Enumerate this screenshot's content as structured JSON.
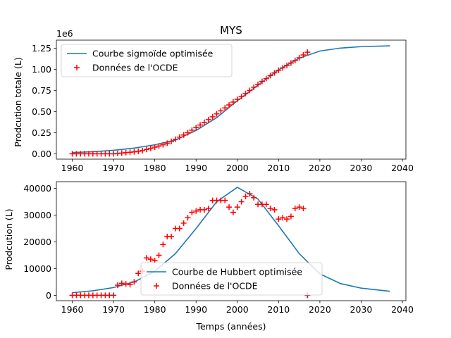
{
  "chart_data": [
    {
      "type": "line+scatter",
      "title": "MYS",
      "ylabel": "Prodcution totale (L)",
      "xlabel": "",
      "offset_text": "1e6",
      "xlim": [
        1956.15,
        2040.85
      ],
      "ylim": [
        -0.064,
        1.345
      ],
      "xticks": [
        1960,
        1970,
        1980,
        1990,
        2000,
        2010,
        2020,
        2030,
        2040
      ],
      "yticks": [
        0.0,
        0.25,
        0.5,
        0.75,
        1.0,
        1.25
      ],
      "ytick_labels": [
        "0.00",
        "0.25",
        "0.50",
        "0.75",
        "1.00",
        "1.25"
      ],
      "legend_position": "upper left",
      "series": [
        {
          "name": "Courbe sigmoïde optimisée",
          "kind": "line",
          "color": "#1f77b4",
          "x": [
            1960,
            1965,
            1970,
            1975,
            1980,
            1985,
            1990,
            1995,
            2000,
            2005,
            2010,
            2015,
            2020,
            2025,
            2030,
            2037
          ],
          "y": [
            0.014,
            0.024,
            0.041,
            0.067,
            0.106,
            0.162,
            0.275,
            0.427,
            0.628,
            0.813,
            0.993,
            1.131,
            1.216,
            1.251,
            1.268,
            1.278
          ]
        },
        {
          "name": "Données de l'OCDE",
          "kind": "scatter",
          "marker": "+",
          "color": "#ff0000",
          "x": [
            1960,
            1961,
            1962,
            1963,
            1964,
            1965,
            1966,
            1967,
            1968,
            1969,
            1970,
            1971,
            1972,
            1973,
            1974,
            1975,
            1976,
            1977,
            1978,
            1979,
            1980,
            1981,
            1982,
            1983,
            1984,
            1985,
            1986,
            1987,
            1988,
            1989,
            1990,
            1991,
            1992,
            1993,
            1994,
            1995,
            1996,
            1997,
            1998,
            1999,
            2000,
            2001,
            2002,
            2003,
            2004,
            2005,
            2006,
            2007,
            2008,
            2009,
            2010,
            2011,
            2012,
            2013,
            2014,
            2015,
            2016,
            2017
          ],
          "y": [
            0.0,
            0.0,
            0.0,
            0.0,
            0.0,
            0.0,
            0.0,
            0.0,
            0.0,
            0.0,
            0.0,
            0.004,
            0.008,
            0.013,
            0.017,
            0.022,
            0.029,
            0.037,
            0.051,
            0.064,
            0.078,
            0.091,
            0.106,
            0.125,
            0.147,
            0.172,
            0.197,
            0.222,
            0.249,
            0.279,
            0.309,
            0.34,
            0.372,
            0.404,
            0.437,
            0.472,
            0.508,
            0.543,
            0.578,
            0.611,
            0.644,
            0.677,
            0.712,
            0.749,
            0.787,
            0.822,
            0.856,
            0.89,
            0.925,
            0.957,
            0.989,
            1.017,
            1.046,
            1.074,
            1.104,
            1.137,
            1.17,
            1.202
          ]
        }
      ]
    },
    {
      "type": "line+scatter",
      "title": "",
      "ylabel": "Prodcution (L)",
      "xlabel": "Temps (années)",
      "xlim": [
        1956.15,
        2040.85
      ],
      "ylim": [
        -2000,
        42500
      ],
      "xticks": [
        1960,
        1970,
        1980,
        1990,
        2000,
        2010,
        2020,
        2030,
        2040
      ],
      "yticks": [
        0,
        10000,
        20000,
        30000,
        40000
      ],
      "legend_position": "lower center",
      "series": [
        {
          "name": "Courbe de Hubbert optimisée",
          "kind": "line",
          "color": "#1f77b4",
          "x": [
            1960,
            1965,
            1970,
            1975,
            1980,
            1985,
            1990,
            1995,
            2000,
            2005,
            2010,
            2015,
            2020,
            2025,
            2030,
            2037
          ],
          "y": [
            1000,
            1700,
            2900,
            5000,
            9000,
            15600,
            25000,
            35000,
            40400,
            36000,
            26000,
            15600,
            8000,
            4400,
            2700,
            1500
          ]
        },
        {
          "name": "Données de l'OCDE",
          "kind": "scatter",
          "marker": "+",
          "color": "#ff0000",
          "x": [
            1960,
            1961,
            1962,
            1963,
            1964,
            1965,
            1966,
            1967,
            1968,
            1969,
            1970,
            1971,
            1972,
            1973,
            1974,
            1975,
            1976,
            1977,
            1978,
            1979,
            1980,
            1981,
            1982,
            1983,
            1984,
            1985,
            1986,
            1987,
            1988,
            1989,
            1990,
            1991,
            1992,
            1993,
            1994,
            1995,
            1996,
            1997,
            1998,
            1999,
            2000,
            2001,
            2002,
            2003,
            2004,
            2005,
            2006,
            2007,
            2008,
            2009,
            2010,
            2011,
            2012,
            2013,
            2014,
            2015,
            2016,
            2017
          ],
          "y": [
            0,
            0,
            0,
            0,
            0,
            0,
            0,
            0,
            0,
            0,
            0,
            3800,
            4500,
            4300,
            4000,
            5000,
            8200,
            9000,
            14000,
            13500,
            13000,
            15000,
            19000,
            22000,
            22000,
            25000,
            25000,
            27000,
            29000,
            31000,
            31500,
            32000,
            32000,
            32500,
            35500,
            35500,
            35500,
            35500,
            33000,
            31000,
            33000,
            35000,
            37000,
            38000,
            36500,
            34000,
            34000,
            34000,
            32500,
            32000,
            28500,
            29000,
            28500,
            29500,
            32500,
            33000,
            32500,
            0
          ]
        }
      ]
    }
  ]
}
